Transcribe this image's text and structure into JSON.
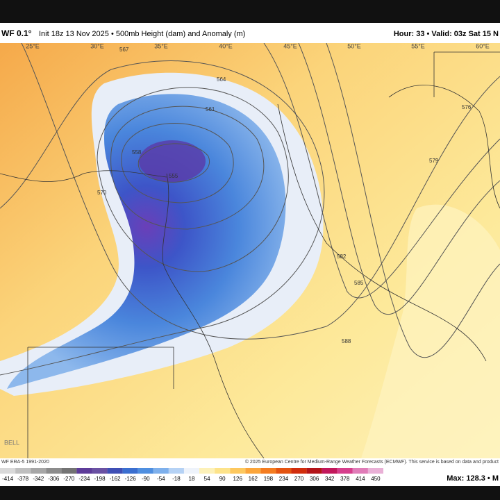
{
  "header": {
    "model": "WF 0.1°",
    "title": "Init 18z 13 Nov 2025 • 500mb Height (dam) and Anomaly (m)",
    "valid": "Hour: 33 • Valid: 03z Sat 15 N"
  },
  "map": {
    "longitudes": [
      "25°E",
      "30°E",
      "35°E",
      "40°E",
      "45°E",
      "50°E",
      "55°E",
      "60°E"
    ],
    "contours": [
      "567",
      "564",
      "561",
      "558",
      "555",
      "570",
      "576",
      "579",
      "582",
      "585",
      "588"
    ],
    "watermark": "BELL"
  },
  "footer": {
    "climatology": "WF ERA-5 1991-2020",
    "copyright": "© 2025 European Centre for Medium-Range Weather Forecasts (ECMWF). This service is based on data and product",
    "stats": "Max: 128.3 • M"
  },
  "colorbar": {
    "labels": [
      -414,
      -378,
      -342,
      -306,
      -270,
      -234,
      -198,
      -162,
      -126,
      -90,
      -54,
      -18,
      18,
      54,
      90,
      126,
      162,
      198,
      234,
      270,
      306,
      342,
      378,
      414,
      450
    ]
  }
}
